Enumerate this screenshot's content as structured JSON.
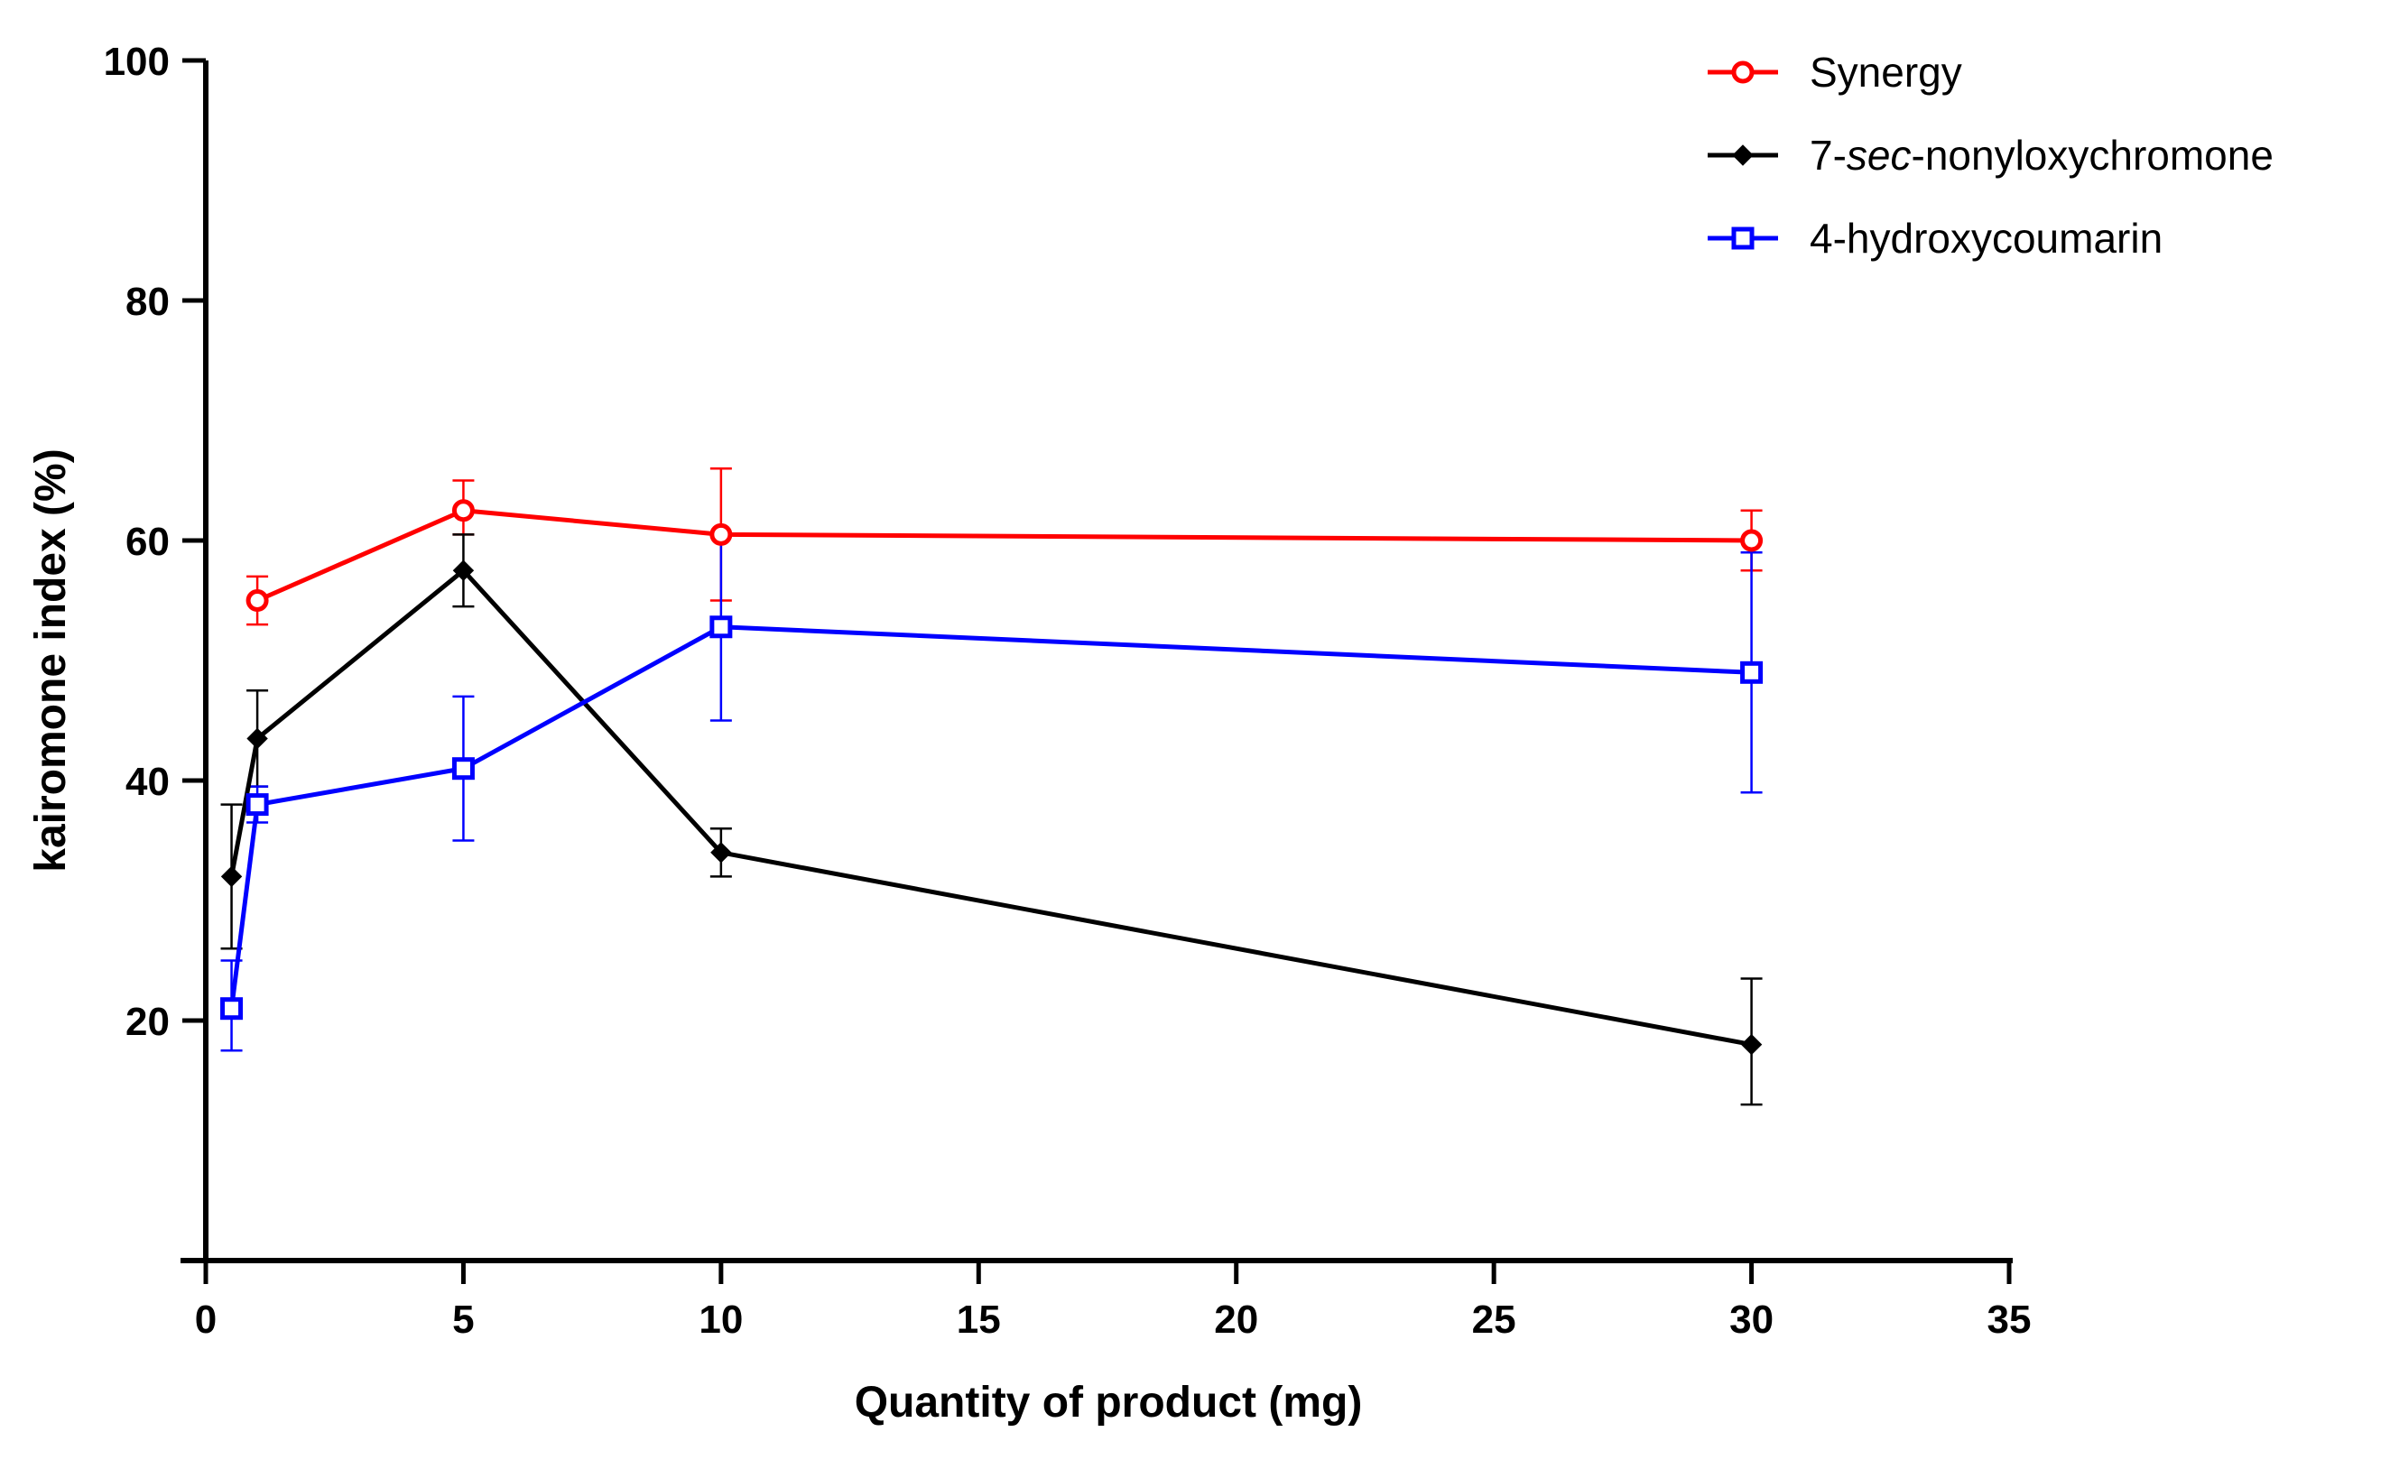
{
  "chart_data": {
    "type": "line",
    "title": "",
    "xlabel": "Quantity of product (mg)",
    "ylabel": "kairomone index (%)",
    "xlim": [
      0,
      35
    ],
    "ylim": [
      0,
      100
    ],
    "xticks": [
      0,
      5,
      10,
      15,
      20,
      25,
      30,
      35
    ],
    "yticks": [
      20,
      40,
      60,
      80,
      100
    ],
    "grid": false,
    "legend_position": "top-right",
    "series": [
      {
        "name": "Synergy",
        "name_parts": [
          "Synergy",
          "",
          ""
        ],
        "color": "#ff0000",
        "marker": "open-circle",
        "x": [
          1,
          5,
          10,
          30
        ],
        "y": [
          55,
          62.5,
          60.5,
          60
        ],
        "err_low": [
          53,
          60.5,
          55,
          57.5
        ],
        "err_high": [
          57,
          65,
          66,
          62.5
        ]
      },
      {
        "name": "7-sec-nonyloxychromone",
        "name_parts": [
          "7-",
          "sec",
          "-nonyloxychromone"
        ],
        "color": "#000000",
        "marker": "diamond",
        "x": [
          0.5,
          1,
          5,
          10,
          30
        ],
        "y": [
          32,
          43.5,
          57.5,
          34,
          18
        ],
        "err_low": [
          26,
          39.5,
          54.5,
          32,
          13
        ],
        "err_high": [
          38,
          47.5,
          60.5,
          36,
          23.5
        ]
      },
      {
        "name": "4-hydroxycoumarin",
        "name_parts": [
          "4-hydroxycoumarin",
          "",
          ""
        ],
        "color": "#0000ff",
        "marker": "open-square",
        "x": [
          0.5,
          1,
          5,
          10,
          30
        ],
        "y": [
          21,
          38,
          41,
          52.8,
          49
        ],
        "err_low": [
          17.5,
          36.5,
          35,
          45,
          39
        ],
        "err_high": [
          25,
          39.5,
          47,
          60.5,
          59
        ]
      }
    ]
  }
}
